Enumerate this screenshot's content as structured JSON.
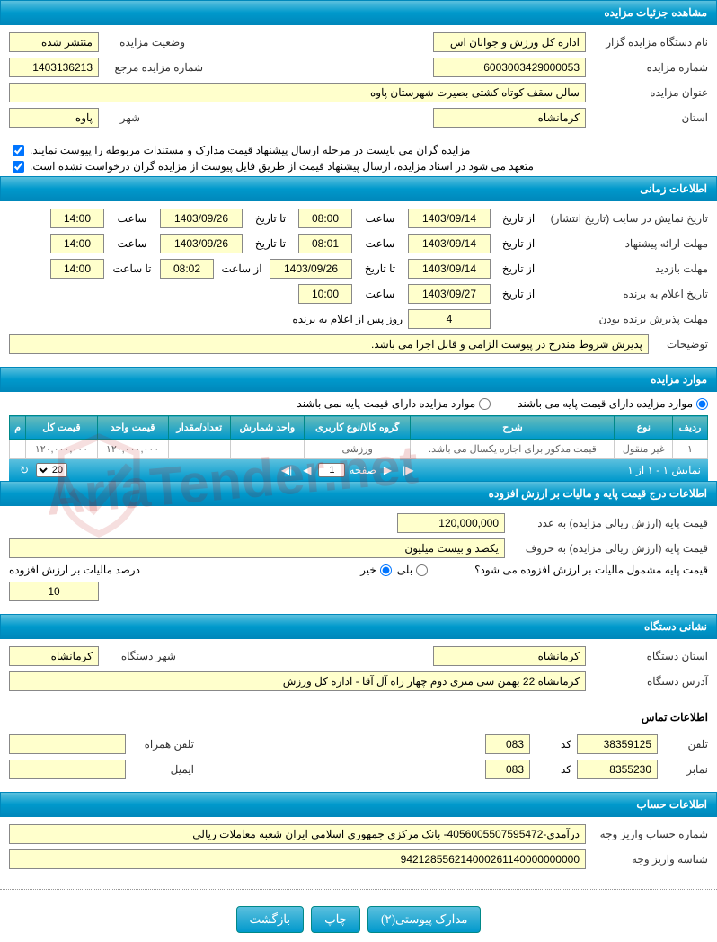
{
  "sections": {
    "details": "مشاهده جزئیات مزایده",
    "timing": "اطلاعات زمانی",
    "items": "موارد مزایده",
    "pricing": "اطلاعات درج قیمت پایه و مالیات بر ارزش افزوده",
    "org": "نشانی دستگاه",
    "account": "اطلاعات حساب"
  },
  "details": {
    "org_label": "نام دستگاه مزایده گزار",
    "org_value": "اداره کل ورزش و جوانان اس",
    "status_label": "وضعیت مزایده",
    "status_value": "منتشر شده",
    "auction_no_label": "شماره مزایده",
    "auction_no_value": "6003003429000053",
    "ref_no_label": "شماره مزایده مرجع",
    "ref_no_value": "1403136213",
    "title_label": "عنوان مزایده",
    "title_value": "سالن سقف کوتاه کشتی بصیرت شهرستان پاوه",
    "province_label": "استان",
    "province_value": "کرمانشاه",
    "city_label": "شهر",
    "city_value": "پاوه",
    "check1": "مزایده گران می بایست در مرحله ارسال پیشنهاد قیمت مدارک و مستندات مربوطه را پیوست نمایند.",
    "check2": "متعهد می شود در اسناد مزایده، ارسال پیشنهاد قیمت از طریق فایل پیوست از مزایده گران درخواست نشده است."
  },
  "timing": {
    "publish_label": "تاریخ نمایش در سایت (تاریخ انتشار)",
    "proposal_label": "مهلت ارائه پیشنهاد",
    "visit_label": "مهلت بازدید",
    "winner_label": "تاریخ اعلام به برنده",
    "accept_label": "مهلت پذیرش برنده بودن",
    "notes_label": "توضیحات",
    "from_date": "از تاریخ",
    "to_date": "تا تاریخ",
    "time": "ساعت",
    "from_time": "از ساعت",
    "to_time": "تا ساعت",
    "days_after": "روز پس از اعلام به برنده",
    "r1": {
      "fd": "1403/09/14",
      "ft": "08:00",
      "td": "1403/09/26",
      "tt": "14:00"
    },
    "r2": {
      "fd": "1403/09/14",
      "ft": "08:01",
      "td": "1403/09/26",
      "tt": "14:00"
    },
    "r3": {
      "fd": "1403/09/14",
      "ft2": "08:02",
      "td": "1403/09/26",
      "tt2": "14:00"
    },
    "r4": {
      "fd": "1403/09/27",
      "ft": "10:00"
    },
    "r5": {
      "days": "4"
    },
    "notes_value": "پذیرش شروط مندرج در پیوست الزامی و قابل اجرا می باشد."
  },
  "items": {
    "radio_yes": "موارد مزایده دارای قیمت پایه می باشند",
    "radio_no": "موارد مزایده دارای قیمت پایه نمی باشند",
    "columns": [
      "ردیف",
      "نوع",
      "شرح",
      "گروه کالا/نوع کاربری",
      "واحد شمارش",
      "تعداد/مقدار",
      "قیمت واحد",
      "قیمت کل",
      "م"
    ],
    "row": [
      "۱",
      "غیر منقول",
      "قیمت مذکور برای اجاره یکسال می باشد.",
      "ورزشی",
      "",
      "",
      "۱۲۰,۰۰۰,۰۰۰",
      "۱۲۰,۰۰۰,۰۰۰",
      ""
    ],
    "pager_info": "نمایش ۱ - ۱ از ۱",
    "page_label": "صفحه",
    "page_value": "1",
    "page_size": "20"
  },
  "pricing": {
    "base_num_label": "قیمت پایه (ارزش ریالی مزایده) به عدد",
    "base_num_value": "120,000,000",
    "base_word_label": "قیمت پایه (ارزش ریالی مزایده) به حروف",
    "base_word_value": "یکصد و بیست میلیون",
    "vat_q": "قیمت پایه مشمول مالیات بر ارزش افزوده می شود؟",
    "yes": "بلی",
    "no": "خیر",
    "vat_pct_label": "درصد مالیات بر ارزش افزوده",
    "vat_pct_value": "10"
  },
  "org": {
    "province_label": "استان دستگاه",
    "province_value": "کرمانشاه",
    "city_label": "شهر دستگاه",
    "city_value": "کرمانشاه",
    "address_label": "آدرس دستگاه",
    "address_value": "کرمانشاه 22 بهمن سی متری دوم چهار راه آل آقا - اداره کل ورزش",
    "contact_title": "اطلاعات تماس",
    "phone_label": "تلفن",
    "phone_value": "38359125",
    "code_label": "کد",
    "code_value": "083",
    "mobile_label": "تلفن همراه",
    "fax_label": "نمابر",
    "fax_value": "8355230",
    "fax_code": "083",
    "email_label": "ایمیل"
  },
  "account": {
    "acc_label": "شماره حساب واریز وجه",
    "acc_value": "درآمدی-4056005507595472- بانک مرکزی جمهوری اسلامی ایران شعبه معاملات ریالی",
    "id_label": "شناسه واریز وجه",
    "id_value": "942128556214000261140000000000"
  },
  "buttons": {
    "attachments": "مدارک پیوستی(۲)",
    "print": "چاپ",
    "back": "بازگشت"
  },
  "colors": {
    "header_bg": "#0099cc",
    "field_bg": "#ffffcc",
    "border": "#888888"
  }
}
